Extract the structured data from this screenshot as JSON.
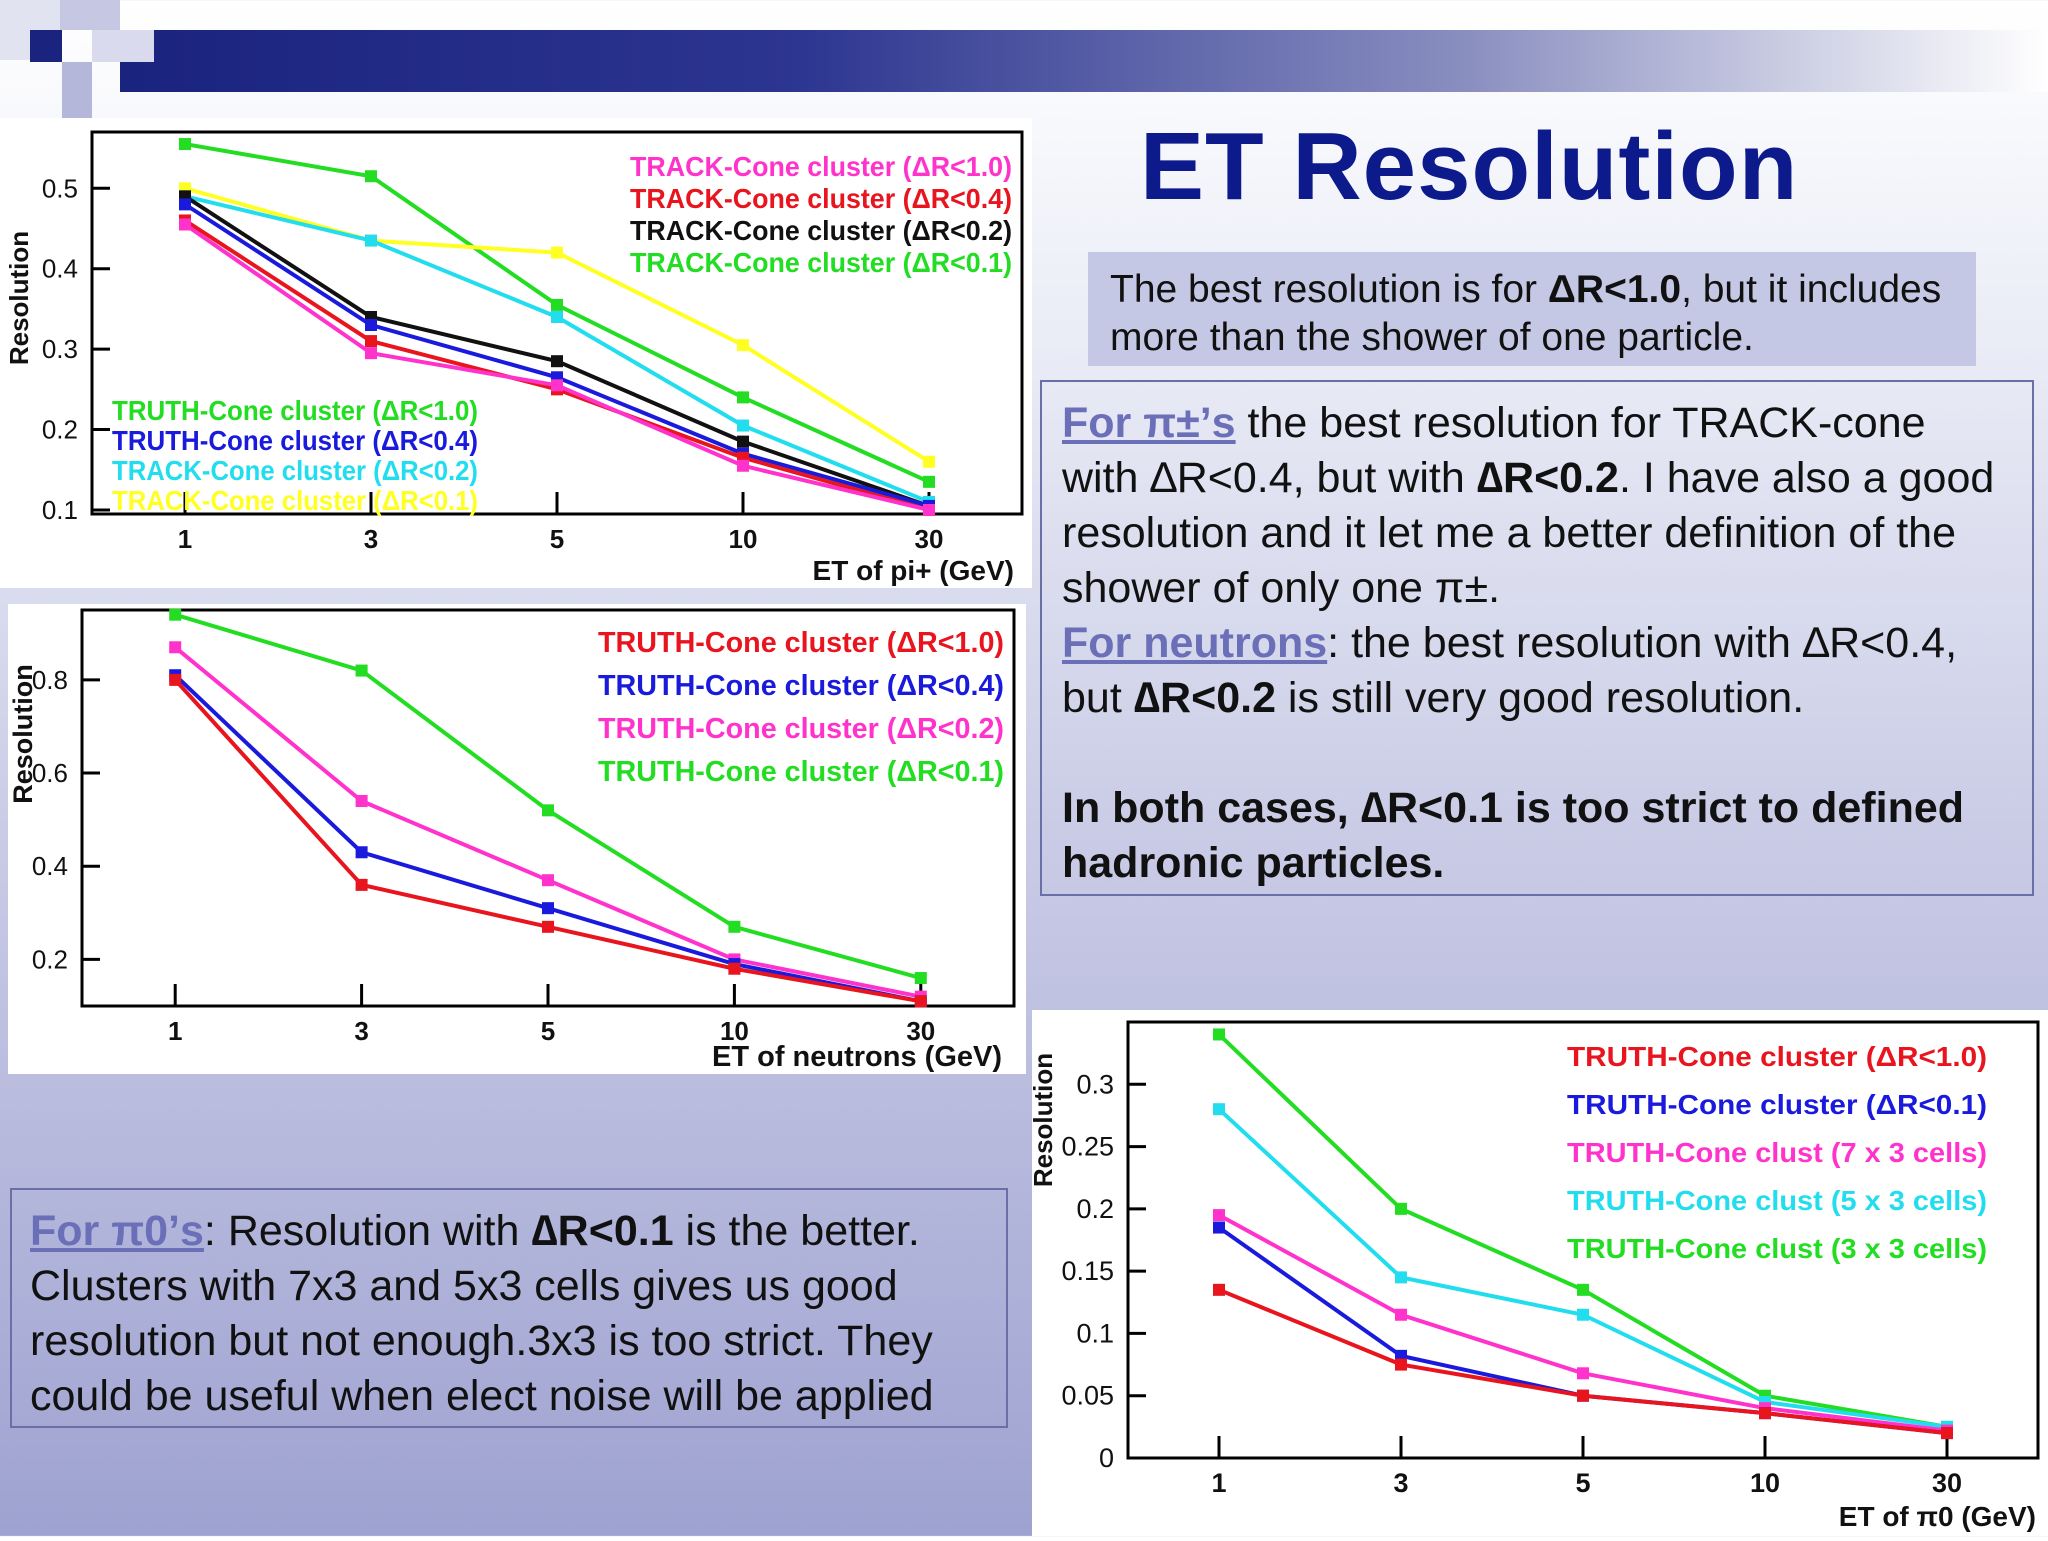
{
  "slide": {
    "title": "ET Resolution",
    "note_pre": "The best resolution is for ",
    "note_bold": "ΔR<1.0",
    "note_post": ", but it includes more than the shower of one particle.",
    "pi_link": "For π±’s",
    "pi_t1": "  the best resolution for TRACK-cone with ∆R<0.4, but with ",
    "pi_b1": "∆R<0.2",
    "pi_t2": ". I have also a good resolution and it let me a better definition of the shower of only one π±.",
    "n_link": "For neutrons",
    "n_t1": ": the best resolution with ∆R<0.4, but ",
    "n_b1": "∆R<0.2",
    "n_t2": " is still very good resolution.",
    "both": "In both cases, ∆R<0.1 is too strict to defined hadronic particles.",
    "pi0_link": "For π0’s",
    "pi0_t1": ": Resolution with ",
    "pi0_b1": "∆R<0.1",
    "pi0_t2": " is the better. Clusters with 7x3 and 5x3 cells gives us good resolution but not enough.3x3 is too strict. They could be useful when elect noise will be applied"
  },
  "chart_data": [
    {
      "type": "line",
      "ylabel": "Resolution",
      "xlabel": "ET of pi+ (GeV)",
      "categories": [
        "1",
        "3",
        "5",
        "10",
        "30"
      ],
      "yticks": [
        "0.1",
        "0.2",
        "0.3",
        "0.4",
        "0.5"
      ],
      "ylim": [
        0.095,
        0.57
      ],
      "legend_right": [
        "TRACK-Cone cluster (ΔR<1.0)",
        "TRACK-Cone cluster (ΔR<0.4)",
        "TRACK-Cone cluster (ΔR<0.2)",
        "TRACK-Cone cluster (ΔR<0.1)"
      ],
      "legend_right_colors": [
        "#ff33cc",
        "#e8141e",
        "#111111",
        "#22dd22"
      ],
      "legend_left": [
        "TRUTH-Cone cluster (ΔR<1.0)",
        "TRUTH-Cone cluster (ΔR<0.4)",
        "TRACK-Cone cluster (ΔR<0.2)",
        "TRACK-Cone cluster (ΔR<0.1)"
      ],
      "legend_left_colors": [
        "#22dd22",
        "#1a1adc",
        "#22ddee",
        "#ffff22"
      ],
      "series": [
        {
          "color": "#22dd22",
          "values": [
            0.555,
            0.515,
            0.355,
            0.24,
            0.135
          ]
        },
        {
          "color": "#ffff22",
          "values": [
            0.5,
            0.435,
            0.42,
            0.305,
            0.16
          ]
        },
        {
          "color": "#22ddee",
          "values": [
            0.49,
            0.435,
            0.34,
            0.205,
            0.11
          ]
        },
        {
          "color": "#111111",
          "values": [
            0.49,
            0.34,
            0.285,
            0.185,
            0.105
          ]
        },
        {
          "color": "#1a1adc",
          "values": [
            0.48,
            0.33,
            0.265,
            0.17,
            0.105
          ]
        },
        {
          "color": "#e8141e",
          "values": [
            0.46,
            0.31,
            0.25,
            0.165,
            0.1
          ]
        },
        {
          "color": "#ff33cc",
          "values": [
            0.455,
            0.295,
            0.255,
            0.155,
            0.1
          ]
        }
      ]
    },
    {
      "type": "line",
      "ylabel": "Resolution",
      "xlabel": "ET of neutrons (GeV)",
      "categories": [
        "1",
        "3",
        "5",
        "10",
        "30"
      ],
      "yticks": [
        "0.2",
        "0.4",
        "0.6",
        "0.8"
      ],
      "ylim": [
        0.1,
        0.95
      ],
      "legend_right": [
        "TRUTH-Cone cluster (ΔR<1.0)",
        "TRUTH-Cone cluster (ΔR<0.4)",
        "TRUTH-Cone cluster (ΔR<0.2)",
        "TRUTH-Cone cluster (ΔR<0.1)"
      ],
      "legend_right_colors": [
        "#e8141e",
        "#1a1adc",
        "#ff33cc",
        "#22dd22"
      ],
      "series": [
        {
          "color": "#22dd22",
          "values": [
            0.94,
            0.82,
            0.52,
            0.27,
            0.16
          ]
        },
        {
          "color": "#ff33cc",
          "values": [
            0.87,
            0.54,
            0.37,
            0.2,
            0.12
          ]
        },
        {
          "color": "#1a1adc",
          "values": [
            0.81,
            0.43,
            0.31,
            0.19,
            0.11
          ]
        },
        {
          "color": "#e8141e",
          "values": [
            0.8,
            0.36,
            0.27,
            0.18,
            0.11
          ]
        }
      ]
    },
    {
      "type": "line",
      "ylabel": "Resolution",
      "xlabel": "ET of π0 (GeV)",
      "categories": [
        "1",
        "3",
        "5",
        "10",
        "30"
      ],
      "yticks": [
        "0",
        "0.05",
        "0.1",
        "0.15",
        "0.2",
        "0.25",
        "0.3"
      ],
      "ylim": [
        0,
        0.35
      ],
      "legend_right": [
        "TRUTH-Cone cluster (ΔR<1.0)",
        "TRUTH-Cone cluster (ΔR<0.1)",
        "TRUTH-Cone clust (7 x 3 cells)",
        "TRUTH-Cone clust (5 x 3 cells)",
        "TRUTH-Cone clust (3 x 3 cells)"
      ],
      "legend_right_colors": [
        "#e8141e",
        "#1a1adc",
        "#ff33cc",
        "#22ddee",
        "#22dd22"
      ],
      "series": [
        {
          "color": "#22dd22",
          "values": [
            0.34,
            0.2,
            0.135,
            0.05,
            0.025
          ]
        },
        {
          "color": "#22ddee",
          "values": [
            0.28,
            0.145,
            0.115,
            0.045,
            0.025
          ]
        },
        {
          "color": "#ff33cc",
          "values": [
            0.195,
            0.115,
            0.068,
            0.04,
            0.022
          ]
        },
        {
          "color": "#1a1adc",
          "values": [
            0.185,
            0.082,
            0.05,
            0.036,
            0.02
          ]
        },
        {
          "color": "#e8141e",
          "values": [
            0.135,
            0.075,
            0.05,
            0.036,
            0.02
          ]
        }
      ]
    }
  ]
}
